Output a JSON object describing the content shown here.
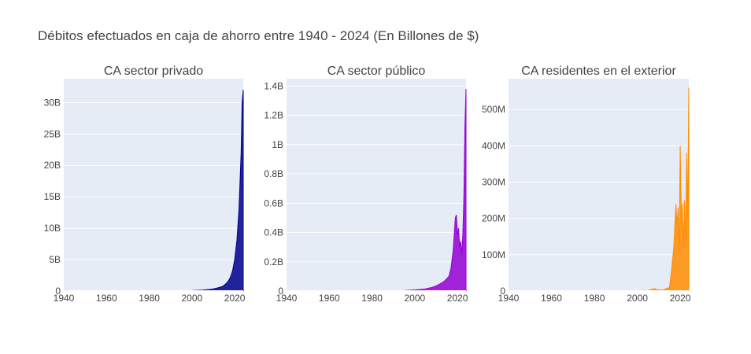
{
  "chart_data": {
    "title": "Débitos efectuados en caja de ahorro entre 1940 - 2024 (En Billones de $)",
    "panels": [
      {
        "type": "area",
        "subtitle": "CA sector privado",
        "color": "#00008b",
        "xlim": [
          1940,
          2024
        ],
        "x_ticks": [
          "1940",
          "1960",
          "1980",
          "2000",
          "2020"
        ],
        "x_tick_values": [
          1940,
          1960,
          1980,
          2000,
          2020
        ],
        "ylim": [
          0,
          33800000000
        ],
        "y_ticks": [
          "0",
          "5B",
          "10B",
          "15B",
          "20B",
          "25B",
          "30B"
        ],
        "y_tick_values": [
          0,
          5000000000,
          10000000000,
          15000000000,
          20000000000,
          25000000000,
          30000000000
        ],
        "grid": true,
        "x": [
          1940,
          1960,
          1980,
          1990,
          2000,
          2005,
          2008,
          2010,
          2012,
          2014,
          2015,
          2016,
          2017,
          2018,
          2019,
          2020,
          2021,
          2022,
          2023,
          2023.5,
          2024
        ],
        "values": [
          0,
          0,
          0,
          20000000,
          80000000,
          150000000,
          250000000,
          350000000,
          500000000,
          700000000,
          900000000,
          1200000000,
          1600000000,
          2200000000,
          3200000000,
          5000000000,
          8000000000,
          13000000000,
          22000000000,
          30000000000,
          32000000000
        ]
      },
      {
        "type": "area",
        "subtitle": "CA sector público",
        "color": "#9400d3",
        "xlim": [
          1940,
          2024
        ],
        "x_ticks": [
          "1940",
          "1960",
          "1980",
          "2000",
          "2020"
        ],
        "x_tick_values": [
          1940,
          1960,
          1980,
          2000,
          2020
        ],
        "ylim": [
          0,
          1450000000
        ],
        "y_ticks": [
          "0",
          "0.2B",
          "0.4B",
          "0.6B",
          "0.8B",
          "1B",
          "1.2B",
          "1.4B"
        ],
        "y_tick_values": [
          0,
          200000000,
          400000000,
          600000000,
          800000000,
          1000000000,
          1200000000,
          1400000000
        ],
        "grid": true,
        "x": [
          1940,
          1980,
          1995,
          2000,
          2005,
          2008,
          2010,
          2012,
          2014,
          2016,
          2017,
          2018,
          2019,
          2019.5,
          2020,
          2020.5,
          2021,
          2021.5,
          2022,
          2022.5,
          2023,
          2023.5,
          2024
        ],
        "values": [
          0,
          0,
          3000000,
          8000000,
          15000000,
          25000000,
          35000000,
          50000000,
          70000000,
          100000000,
          160000000,
          280000000,
          500000000,
          520000000,
          380000000,
          430000000,
          300000000,
          340000000,
          250000000,
          380000000,
          650000000,
          1130000000,
          1380000000
        ]
      },
      {
        "type": "area",
        "subtitle": "CA residentes en el exterior",
        "color": "#ff8c00",
        "xlim": [
          1940,
          2024
        ],
        "x_ticks": [
          "1940",
          "1960",
          "1980",
          "2000",
          "2020"
        ],
        "x_tick_values": [
          1940,
          1960,
          1980,
          2000,
          2020
        ],
        "ylim": [
          0,
          585000000
        ],
        "y_ticks": [
          "0",
          "100M",
          "200M",
          "300M",
          "400M",
          "500M"
        ],
        "y_tick_values": [
          0,
          100000000,
          200000000,
          300000000,
          400000000,
          500000000
        ],
        "grid": true,
        "x": [
          1940,
          2000,
          2005,
          2007,
          2008,
          2009,
          2012,
          2015,
          2016,
          2017,
          2018,
          2018.5,
          2019,
          2019.5,
          2020,
          2020.5,
          2021,
          2021.5,
          2022,
          2022.5,
          2023,
          2023.5,
          2024
        ],
        "values": [
          0,
          1000000,
          2000000,
          5000000,
          7000000,
          4000000,
          3000000,
          10000000,
          60000000,
          120000000,
          240000000,
          180000000,
          230000000,
          100000000,
          400000000,
          200000000,
          240000000,
          120000000,
          250000000,
          120000000,
          380000000,
          200000000,
          560000000
        ]
      }
    ]
  }
}
